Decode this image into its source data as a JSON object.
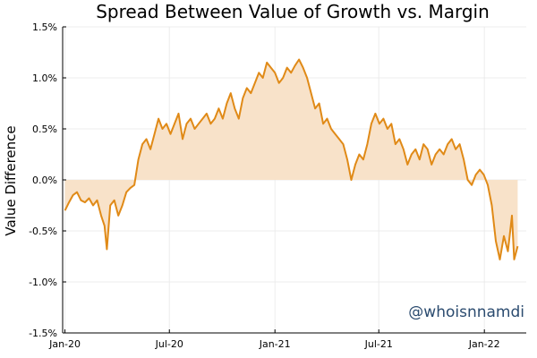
{
  "chart_data": {
    "type": "area",
    "title": "Spread Between Value of Growth vs. Margin",
    "xlabel": "",
    "ylabel": "Value Difference",
    "xlim": [
      "2019-12-28",
      "2022-03-15"
    ],
    "ylim": [
      -1.5,
      1.5
    ],
    "grid": true,
    "x_ticks": [
      {
        "date": "2020-01-01",
        "label": "Jan-20"
      },
      {
        "date": "2020-07-01",
        "label": "Jul-20"
      },
      {
        "date": "2021-01-01",
        "label": "Jan-21"
      },
      {
        "date": "2021-07-01",
        "label": "Jul-21"
      },
      {
        "date": "2022-01-01",
        "label": "Jan-22"
      }
    ],
    "y_ticks": [
      {
        "value": 1.5,
        "label": "1.5%"
      },
      {
        "value": 1.0,
        "label": "1.0%"
      },
      {
        "value": 0.5,
        "label": "0.5%"
      },
      {
        "value": 0.0,
        "label": "0.0%"
      },
      {
        "value": -0.5,
        "label": "-0.5%"
      },
      {
        "value": -1.0,
        "label": "-1.0%"
      },
      {
        "value": -1.5,
        "label": "-1.5%"
      }
    ],
    "watermark": "@whoisnnamdi",
    "colors": {
      "line": "#e08a17",
      "fill": "#f8e2c9",
      "grid": "#ececec",
      "watermark": "#2b4b6f"
    },
    "series": [
      {
        "name": "Value Difference",
        "points": [
          [
            "2020-01-01",
            -0.3
          ],
          [
            "2020-01-08",
            -0.22
          ],
          [
            "2020-01-15",
            -0.15
          ],
          [
            "2020-01-22",
            -0.12
          ],
          [
            "2020-01-29",
            -0.2
          ],
          [
            "2020-02-05",
            -0.22
          ],
          [
            "2020-02-12",
            -0.18
          ],
          [
            "2020-02-19",
            -0.25
          ],
          [
            "2020-02-26",
            -0.2
          ],
          [
            "2020-03-04",
            -0.35
          ],
          [
            "2020-03-10",
            -0.45
          ],
          [
            "2020-03-14",
            -0.68
          ],
          [
            "2020-03-20",
            -0.25
          ],
          [
            "2020-03-27",
            -0.2
          ],
          [
            "2020-04-03",
            -0.35
          ],
          [
            "2020-04-10",
            -0.25
          ],
          [
            "2020-04-17",
            -0.12
          ],
          [
            "2020-04-24",
            -0.08
          ],
          [
            "2020-05-01",
            -0.05
          ],
          [
            "2020-05-08",
            0.2
          ],
          [
            "2020-05-15",
            0.35
          ],
          [
            "2020-05-22",
            0.4
          ],
          [
            "2020-05-29",
            0.3
          ],
          [
            "2020-06-05",
            0.45
          ],
          [
            "2020-06-12",
            0.6
          ],
          [
            "2020-06-19",
            0.5
          ],
          [
            "2020-06-26",
            0.55
          ],
          [
            "2020-07-03",
            0.45
          ],
          [
            "2020-07-10",
            0.55
          ],
          [
            "2020-07-17",
            0.65
          ],
          [
            "2020-07-24",
            0.4
          ],
          [
            "2020-07-31",
            0.55
          ],
          [
            "2020-08-07",
            0.6
          ],
          [
            "2020-08-14",
            0.5
          ],
          [
            "2020-08-21",
            0.55
          ],
          [
            "2020-08-28",
            0.6
          ],
          [
            "2020-09-04",
            0.65
          ],
          [
            "2020-09-11",
            0.55
          ],
          [
            "2020-09-18",
            0.6
          ],
          [
            "2020-09-25",
            0.7
          ],
          [
            "2020-10-02",
            0.6
          ],
          [
            "2020-10-09",
            0.75
          ],
          [
            "2020-10-16",
            0.85
          ],
          [
            "2020-10-23",
            0.7
          ],
          [
            "2020-10-30",
            0.6
          ],
          [
            "2020-11-06",
            0.8
          ],
          [
            "2020-11-13",
            0.9
          ],
          [
            "2020-11-20",
            0.85
          ],
          [
            "2020-11-27",
            0.95
          ],
          [
            "2020-12-04",
            1.05
          ],
          [
            "2020-12-11",
            1.0
          ],
          [
            "2020-12-18",
            1.15
          ],
          [
            "2020-12-25",
            1.1
          ],
          [
            "2021-01-01",
            1.05
          ],
          [
            "2021-01-08",
            0.95
          ],
          [
            "2021-01-15",
            1.0
          ],
          [
            "2021-01-22",
            1.1
          ],
          [
            "2021-01-29",
            1.05
          ],
          [
            "2021-02-05",
            1.12
          ],
          [
            "2021-02-12",
            1.18
          ],
          [
            "2021-02-19",
            1.1
          ],
          [
            "2021-02-26",
            1.0
          ],
          [
            "2021-03-05",
            0.85
          ],
          [
            "2021-03-12",
            0.7
          ],
          [
            "2021-03-19",
            0.75
          ],
          [
            "2021-03-26",
            0.55
          ],
          [
            "2021-04-02",
            0.6
          ],
          [
            "2021-04-09",
            0.5
          ],
          [
            "2021-04-16",
            0.45
          ],
          [
            "2021-04-23",
            0.4
          ],
          [
            "2021-04-30",
            0.35
          ],
          [
            "2021-05-07",
            0.2
          ],
          [
            "2021-05-14",
            0.0
          ],
          [
            "2021-05-21",
            0.15
          ],
          [
            "2021-05-28",
            0.25
          ],
          [
            "2021-06-04",
            0.2
          ],
          [
            "2021-06-11",
            0.35
          ],
          [
            "2021-06-18",
            0.55
          ],
          [
            "2021-06-25",
            0.65
          ],
          [
            "2021-07-02",
            0.55
          ],
          [
            "2021-07-09",
            0.6
          ],
          [
            "2021-07-16",
            0.5
          ],
          [
            "2021-07-23",
            0.55
          ],
          [
            "2021-07-30",
            0.35
          ],
          [
            "2021-08-06",
            0.4
          ],
          [
            "2021-08-13",
            0.3
          ],
          [
            "2021-08-20",
            0.15
          ],
          [
            "2021-08-27",
            0.25
          ],
          [
            "2021-09-03",
            0.3
          ],
          [
            "2021-09-10",
            0.2
          ],
          [
            "2021-09-17",
            0.35
          ],
          [
            "2021-09-24",
            0.3
          ],
          [
            "2021-10-01",
            0.15
          ],
          [
            "2021-10-08",
            0.25
          ],
          [
            "2021-10-15",
            0.3
          ],
          [
            "2021-10-22",
            0.25
          ],
          [
            "2021-10-29",
            0.35
          ],
          [
            "2021-11-05",
            0.4
          ],
          [
            "2021-11-12",
            0.3
          ],
          [
            "2021-11-19",
            0.35
          ],
          [
            "2021-11-26",
            0.2
          ],
          [
            "2021-12-03",
            0.0
          ],
          [
            "2021-12-10",
            -0.05
          ],
          [
            "2021-12-17",
            0.05
          ],
          [
            "2021-12-24",
            0.1
          ],
          [
            "2021-12-31",
            0.05
          ],
          [
            "2022-01-07",
            -0.05
          ],
          [
            "2022-01-14",
            -0.25
          ],
          [
            "2022-01-21",
            -0.6
          ],
          [
            "2022-01-28",
            -0.78
          ],
          [
            "2022-02-04",
            -0.55
          ],
          [
            "2022-02-11",
            -0.7
          ],
          [
            "2022-02-18",
            -0.35
          ],
          [
            "2022-02-22",
            -0.78
          ],
          [
            "2022-02-28",
            -0.65
          ]
        ]
      }
    ]
  }
}
